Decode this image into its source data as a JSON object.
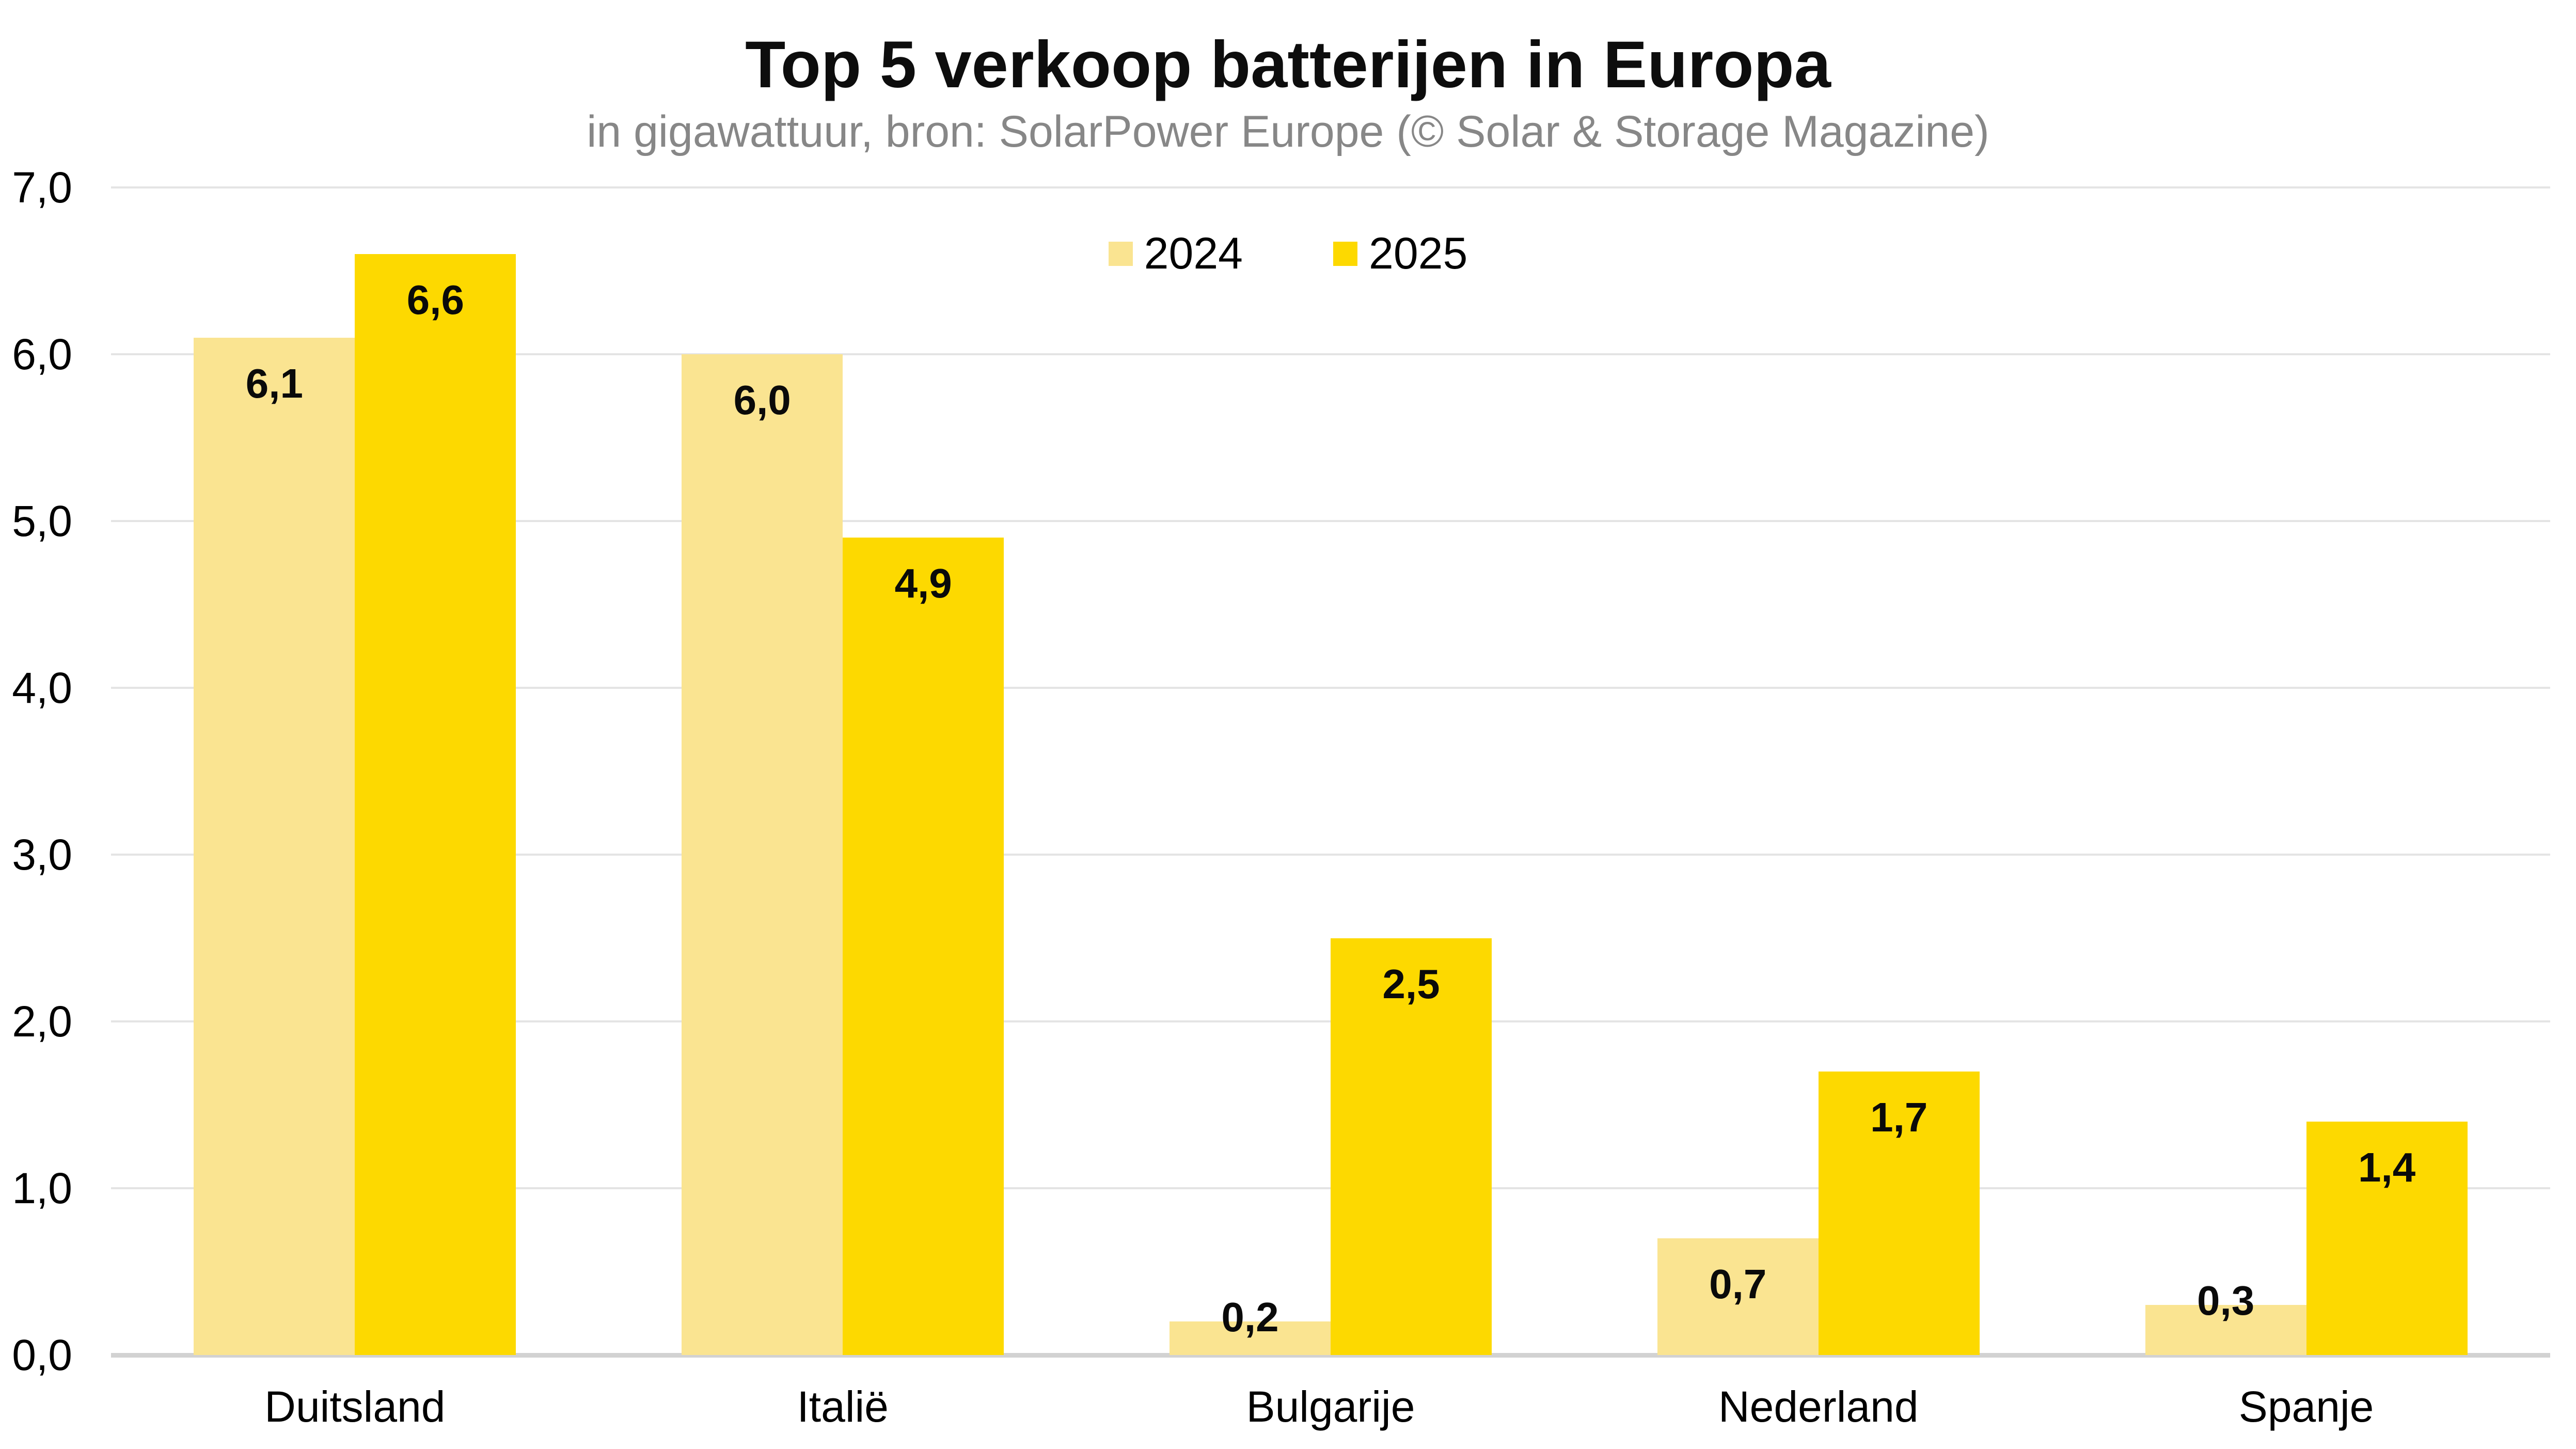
{
  "chart_data": {
    "type": "bar",
    "title": "Top 5 verkoop batterijen in Europa",
    "subtitle": "in gigawattuur, bron: SolarPower Europe (© Solar & Storage Magazine)",
    "categories": [
      "Duitsland",
      "Italië",
      "Bulgarije",
      "Nederland",
      "Spanje"
    ],
    "series": [
      {
        "name": "2024",
        "color": "#FAE491",
        "values": [
          6.1,
          6.0,
          0.2,
          0.7,
          0.3
        ],
        "labels": [
          "6,1",
          "6,0",
          "0,2",
          "0,7",
          "0,3"
        ]
      },
      {
        "name": "2025",
        "color": "#FDD900",
        "values": [
          6.6,
          4.9,
          2.5,
          1.7,
          1.4
        ],
        "labels": [
          "6,6",
          "4,9",
          "2,5",
          "1,7",
          "1,4"
        ]
      }
    ],
    "ylabel": "",
    "xlabel": "",
    "ylim": [
      0,
      7
    ],
    "ytick_step": 1.0,
    "ytick_labels": [
      "7,0",
      "6,0",
      "5,0",
      "4,0",
      "3,0",
      "2,0",
      "1,0",
      "0,0"
    ],
    "decimal_separator": ",",
    "grid": true,
    "gridline_color": "#e4e4e4",
    "baseline_color": "#d2d2d2",
    "legend_position": "top-center",
    "title_color": "#0d0d0d",
    "subtitle_color": "#878787",
    "value_label_color": "#0a0a0a"
  }
}
